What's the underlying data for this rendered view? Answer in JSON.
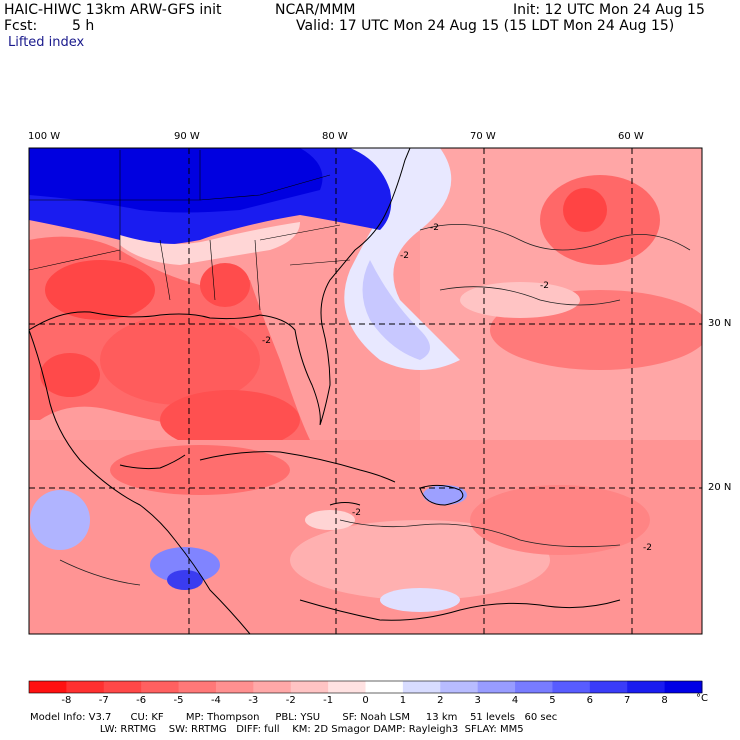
{
  "header": {
    "model": "HAIC-HIWC 13km ARW-GFS init",
    "center": "NCAR/MMM",
    "init": "Init: 12 UTC Mon 24 Aug 15",
    "fcst_label": "Fcst:",
    "fcst_value": "5 h",
    "valid": "Valid: 17 UTC Mon 24 Aug 15 (15 LDT Mon 24 Aug 15)",
    "field": "Lifted index"
  },
  "map": {
    "lon_labels": [
      "100 W",
      "90 W",
      "80 W",
      "70 W",
      "60 W"
    ],
    "lat_labels": [
      "30 N",
      "20 N"
    ],
    "contour_label": "-2"
  },
  "colorbar": {
    "ticks": [
      "-8",
      "-7",
      "-6",
      "-5",
      "-4",
      "-3",
      "-2",
      "-1",
      "0",
      "1",
      "2",
      "3",
      "4",
      "5",
      "6",
      "7",
      "8"
    ],
    "unit": "°C",
    "colors": [
      "#ff1111",
      "#ff3030",
      "#ff4848",
      "#ff6060",
      "#ff7878",
      "#ff9090",
      "#ffa8a8",
      "#ffc4c4",
      "#ffe2e2",
      "#ffffff",
      "#d8dcff",
      "#b8bcff",
      "#989cff",
      "#787cff",
      "#585cff",
      "#3a3cf8",
      "#1a1cf0",
      "#0000e6"
    ]
  },
  "footer": {
    "line1": "Model Info: V3.7      CU: KF       MP: Thompson     PBL: YSU       SF: Noah LSM     13 km    51 levels   60 sec",
    "line2": "                      LW: RRTMG    SW: RRTMG   DIFF: full    KM: 2D Smagor DAMP: Rayleigh3  SFLAY: MM5"
  }
}
